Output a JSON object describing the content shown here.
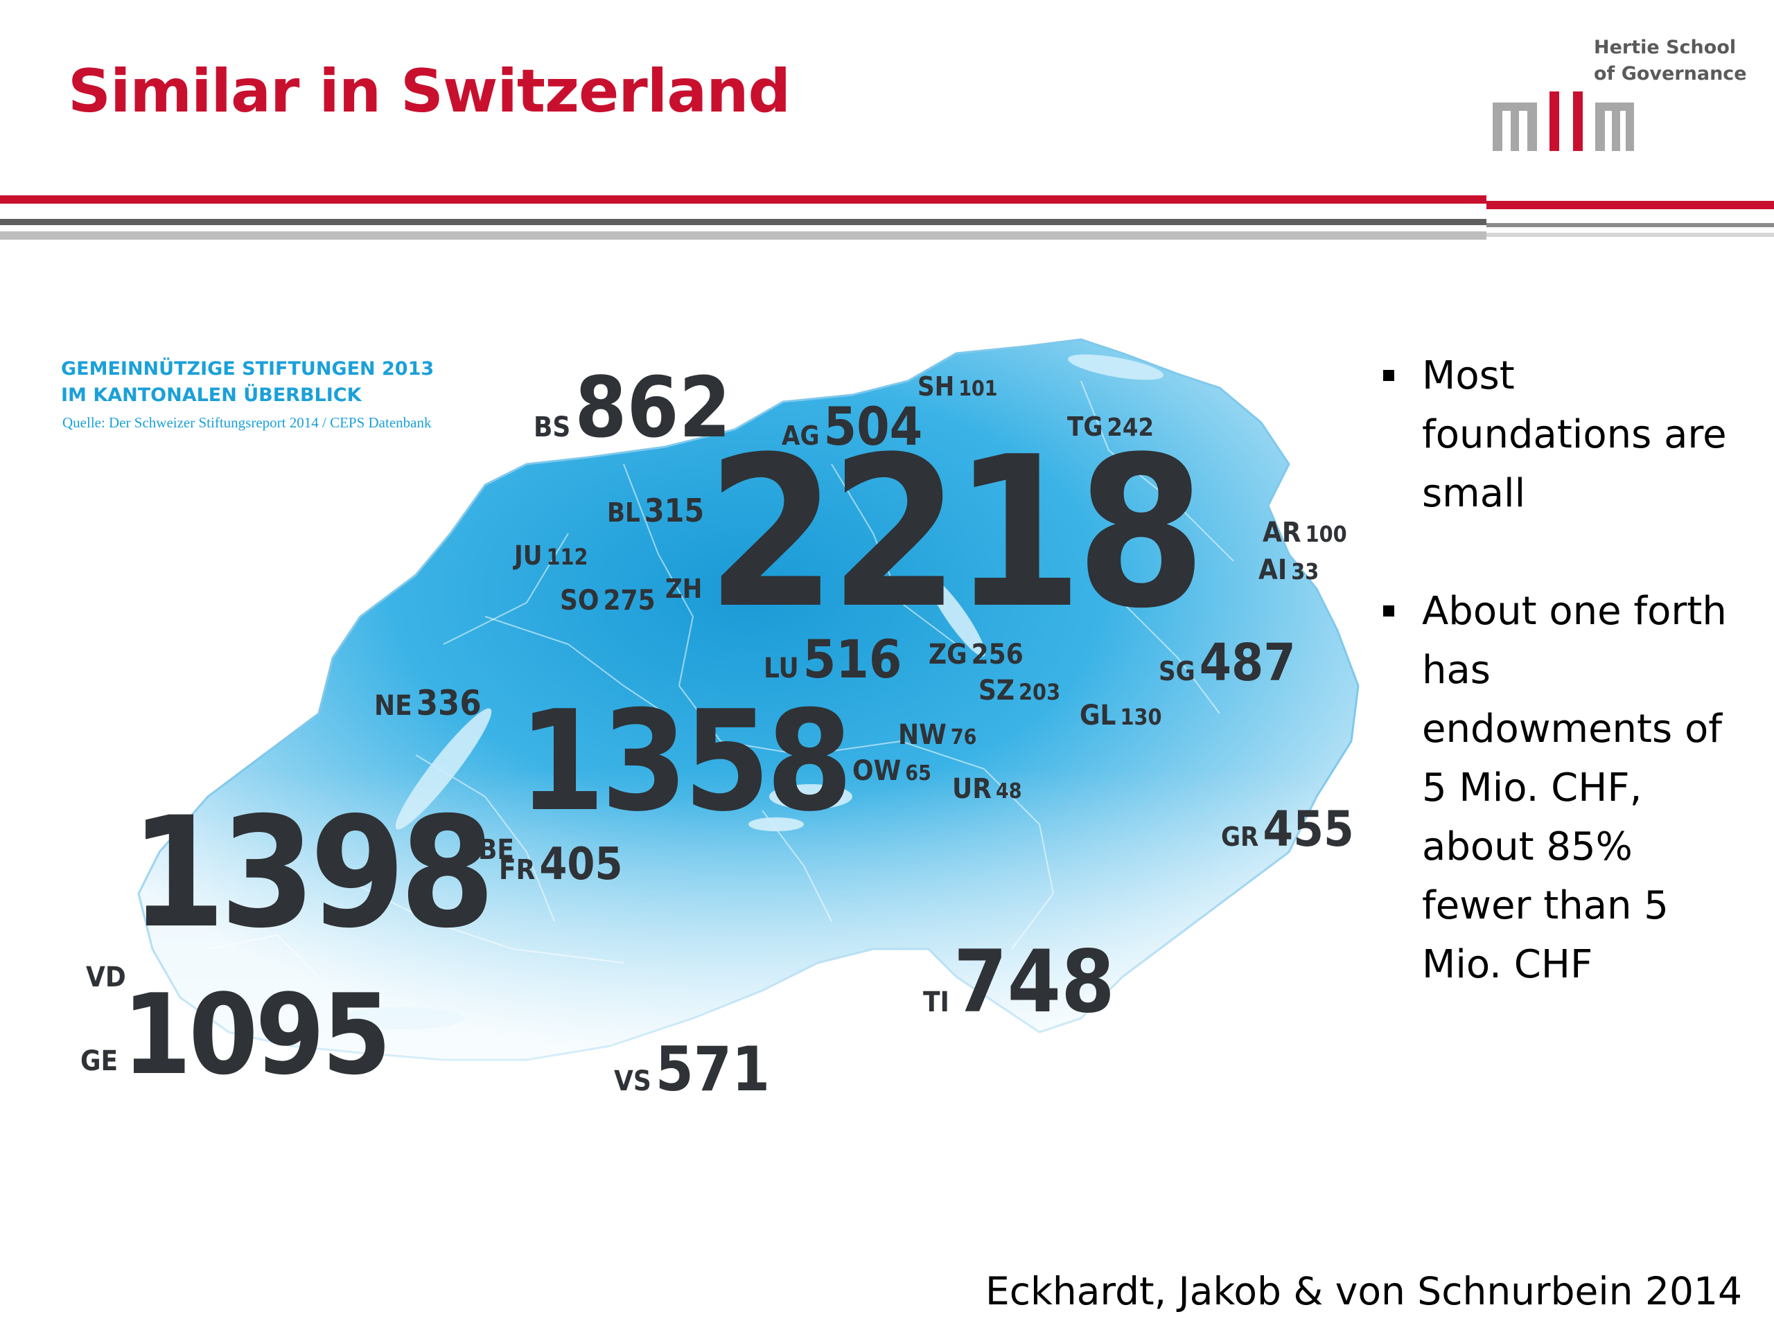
{
  "slide": {
    "title": "Similar in Switzerland",
    "logo": {
      "line1": "Hertie School",
      "line2": "of Governance",
      "icon": "hertie-school-logo-icon"
    },
    "colors": {
      "title": "#c8102e",
      "accent_rule": "#c8102e",
      "gray_rule": "#6b6b6b",
      "map_blue": "#1ba0d9",
      "map_label": "#2f3236"
    },
    "map": {
      "title_line1": "GEMEINNÜTZIGE STIFTUNGEN 2013",
      "title_line2": "IM KANTONALEN ÜBERBLICK",
      "source": "Quelle: Der Schweizer Stiftungsreport 2014 / CEPS Datenbank",
      "cantons": [
        {
          "code": "BS",
          "value": "862"
        },
        {
          "code": "AG",
          "value": "504"
        },
        {
          "code": "SH",
          "value": "101"
        },
        {
          "code": "TG",
          "value": "242"
        },
        {
          "code": "BL",
          "value": "315"
        },
        {
          "code": "ZH",
          "value": "2218"
        },
        {
          "code": "AR",
          "value": "100"
        },
        {
          "code": "AI",
          "value": "33"
        },
        {
          "code": "JU",
          "value": "112"
        },
        {
          "code": "SO",
          "value": "275"
        },
        {
          "code": "LU",
          "value": "516"
        },
        {
          "code": "ZG",
          "value": "256"
        },
        {
          "code": "SG",
          "value": "487"
        },
        {
          "code": "SZ",
          "value": "203"
        },
        {
          "code": "NE",
          "value": "336"
        },
        {
          "code": "GL",
          "value": "130"
        },
        {
          "code": "BE",
          "value": "1358"
        },
        {
          "code": "NW",
          "value": "76"
        },
        {
          "code": "OW",
          "value": "65"
        },
        {
          "code": "UR",
          "value": "48"
        },
        {
          "code": "VD",
          "value": "1398"
        },
        {
          "code": "FR",
          "value": "405"
        },
        {
          "code": "GR",
          "value": "455"
        },
        {
          "code": "TI",
          "value": "748"
        },
        {
          "code": "GE",
          "value": "1095"
        },
        {
          "code": "VS",
          "value": "571"
        }
      ]
    },
    "bullets": [
      "Most foundations are small",
      "About one forth has endowments of 5 Mio. CHF, about 85% fewer than 5 Mio. CHF"
    ],
    "citation": "Eckhardt, Jakob & von Schnurbein 2014"
  }
}
